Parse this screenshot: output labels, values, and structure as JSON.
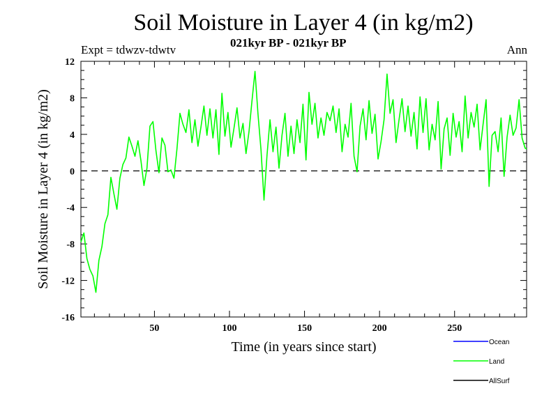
{
  "title": "Soil Moisture in Layer 4 (in kg/m2)",
  "subtitle": "021kyr BP - 021kyr BP",
  "expt_label": "Expt = tdwzv-tdwtv",
  "period_label": "Ann",
  "colors": {
    "ocean": "#0000ff",
    "land": "#00ff00",
    "allsurf": "#000000",
    "axes": "#000000"
  },
  "chart_data": {
    "type": "line",
    "title": "Soil Moisture in Layer 4 (in kg/m2)",
    "xlabel": "Time (in years since start)",
    "ylabel": "Soil Moisture in Layer 4 (in kg/m2)",
    "xlim": [
      1,
      298
    ],
    "ylim": [
      -16,
      12
    ],
    "xticks": [
      50,
      100,
      150,
      200,
      250
    ],
    "yticks": [
      -16,
      -12,
      -8,
      -4,
      0,
      4,
      8,
      12
    ],
    "zero_line": "dashed",
    "legend": [
      "Ocean",
      "Land",
      "AllSurf"
    ],
    "series": [
      {
        "name": "Ocean",
        "color": "#0000ff",
        "x": [],
        "values": []
      },
      {
        "name": "Land",
        "color": "#00ff00",
        "x": [
          1,
          3,
          5,
          7,
          9,
          11,
          13,
          15,
          17,
          19,
          21,
          23,
          25,
          27,
          29,
          31,
          33,
          35,
          37,
          39,
          41,
          43,
          45,
          47,
          49,
          51,
          53,
          55,
          57,
          59,
          61,
          63,
          65,
          67,
          69,
          71,
          73,
          75,
          77,
          79,
          81,
          83,
          85,
          87,
          89,
          91,
          93,
          95,
          97,
          99,
          101,
          103,
          105,
          107,
          109,
          111,
          113,
          115,
          117,
          119,
          121,
          123,
          125,
          127,
          129,
          131,
          133,
          135,
          137,
          139,
          141,
          143,
          145,
          147,
          149,
          151,
          153,
          155,
          157,
          159,
          161,
          163,
          165,
          167,
          169,
          171,
          173,
          175,
          177,
          179,
          181,
          183,
          185,
          187,
          189,
          191,
          193,
          195,
          197,
          199,
          201,
          203,
          205,
          207,
          209,
          211,
          213,
          215,
          217,
          219,
          221,
          223,
          225,
          227,
          229,
          231,
          233,
          235,
          237,
          239,
          241,
          243,
          245,
          247,
          249,
          251,
          253,
          255,
          257,
          259,
          261,
          263,
          265,
          267,
          269,
          271,
          273,
          275,
          277,
          279,
          281,
          283,
          285,
          287,
          289,
          291,
          293,
          295,
          297,
          298
        ],
        "values": [
          -7.8,
          -6.8,
          -9.6,
          -10.8,
          -11.5,
          -13.3,
          -9.8,
          -8.3,
          -5.8,
          -4.8,
          -0.7,
          -2.5,
          -4.2,
          -0.8,
          0.7,
          1.4,
          3.7,
          2.7,
          1.6,
          3.3,
          1.1,
          -1.6,
          0.3,
          4.9,
          5.4,
          2.2,
          -0.2,
          3.6,
          2.8,
          -0.1,
          0.1,
          -0.8,
          2.4,
          6.3,
          5.1,
          4.2,
          6.7,
          3.1,
          5.6,
          2.7,
          4.8,
          7.1,
          3.9,
          6.8,
          3.6,
          6.7,
          1.8,
          8.5,
          3.8,
          6.4,
          2.6,
          4.7,
          6.9,
          3.6,
          5.2,
          1.9,
          4.3,
          7.7,
          10.9,
          6.2,
          2.3,
          -3.2,
          1.7,
          5.6,
          2.1,
          4.8,
          0.3,
          3.9,
          6.3,
          1.6,
          4.9,
          1.9,
          5.6,
          3.1,
          7.3,
          1.2,
          8.6,
          5.1,
          7.4,
          3.6,
          5.8,
          3.9,
          6.4,
          5.5,
          7.1,
          4.2,
          6.8,
          2.1,
          5.1,
          3.7,
          7.4,
          1.6,
          -0.1,
          4.9,
          6.8,
          3.4,
          7.7,
          4.1,
          6.2,
          1.3,
          3.2,
          5.6,
          10.6,
          6.3,
          7.8,
          3.1,
          5.6,
          7.9,
          4.3,
          7.1,
          3.8,
          6.4,
          2.4,
          8.1,
          4.2,
          7.9,
          2.3,
          5.1,
          3.4,
          7.6,
          0.2,
          4.6,
          5.8,
          1.7,
          6.3,
          3.7,
          5.4,
          2.1,
          8.2,
          3.6,
          6.4,
          4.8,
          7.3,
          2.3,
          5.1,
          7.8,
          -1.7,
          3.9,
          4.3,
          2.1,
          5.8,
          -0.6,
          3.7,
          6.1,
          3.9,
          4.7,
          7.8,
          3.6,
          2.5,
          2.4
        ]
      },
      {
        "name": "AllSurf",
        "color": "#000000",
        "x": [],
        "values": []
      }
    ]
  }
}
